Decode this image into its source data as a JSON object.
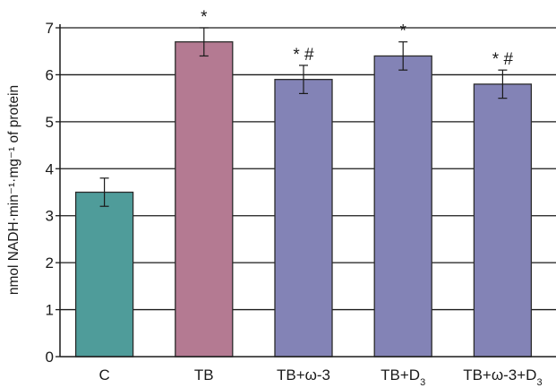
{
  "chart_data": {
    "type": "bar",
    "ylabel": "nmol NADH·min⁻¹·mg⁻¹ of protein",
    "ylim": [
      0,
      7
    ],
    "yticks": [
      0,
      1,
      2,
      3,
      4,
      5,
      6,
      7
    ],
    "categories": [
      "C",
      "TB",
      "TB+ω-3",
      "TB+D3",
      "TB+ω-3+D3"
    ],
    "category_labels": [
      {
        "base": "C",
        "sub": ""
      },
      {
        "base": "TB",
        "sub": ""
      },
      {
        "base": "TB+ω-3",
        "sub": ""
      },
      {
        "base": "TB+D",
        "sub": "3"
      },
      {
        "base": "TB+ω-3+D",
        "sub": "3"
      }
    ],
    "values": [
      3.5,
      6.7,
      5.9,
      6.4,
      5.8
    ],
    "errors": [
      0.3,
      0.3,
      0.3,
      0.3,
      0.3
    ],
    "annotations": [
      "",
      "*",
      "* #",
      "*",
      "* #"
    ],
    "bar_colors": [
      "#4f9c9a",
      "#b47a92",
      "#8383b6",
      "#8383b6",
      "#8383b6"
    ],
    "grid": true
  }
}
